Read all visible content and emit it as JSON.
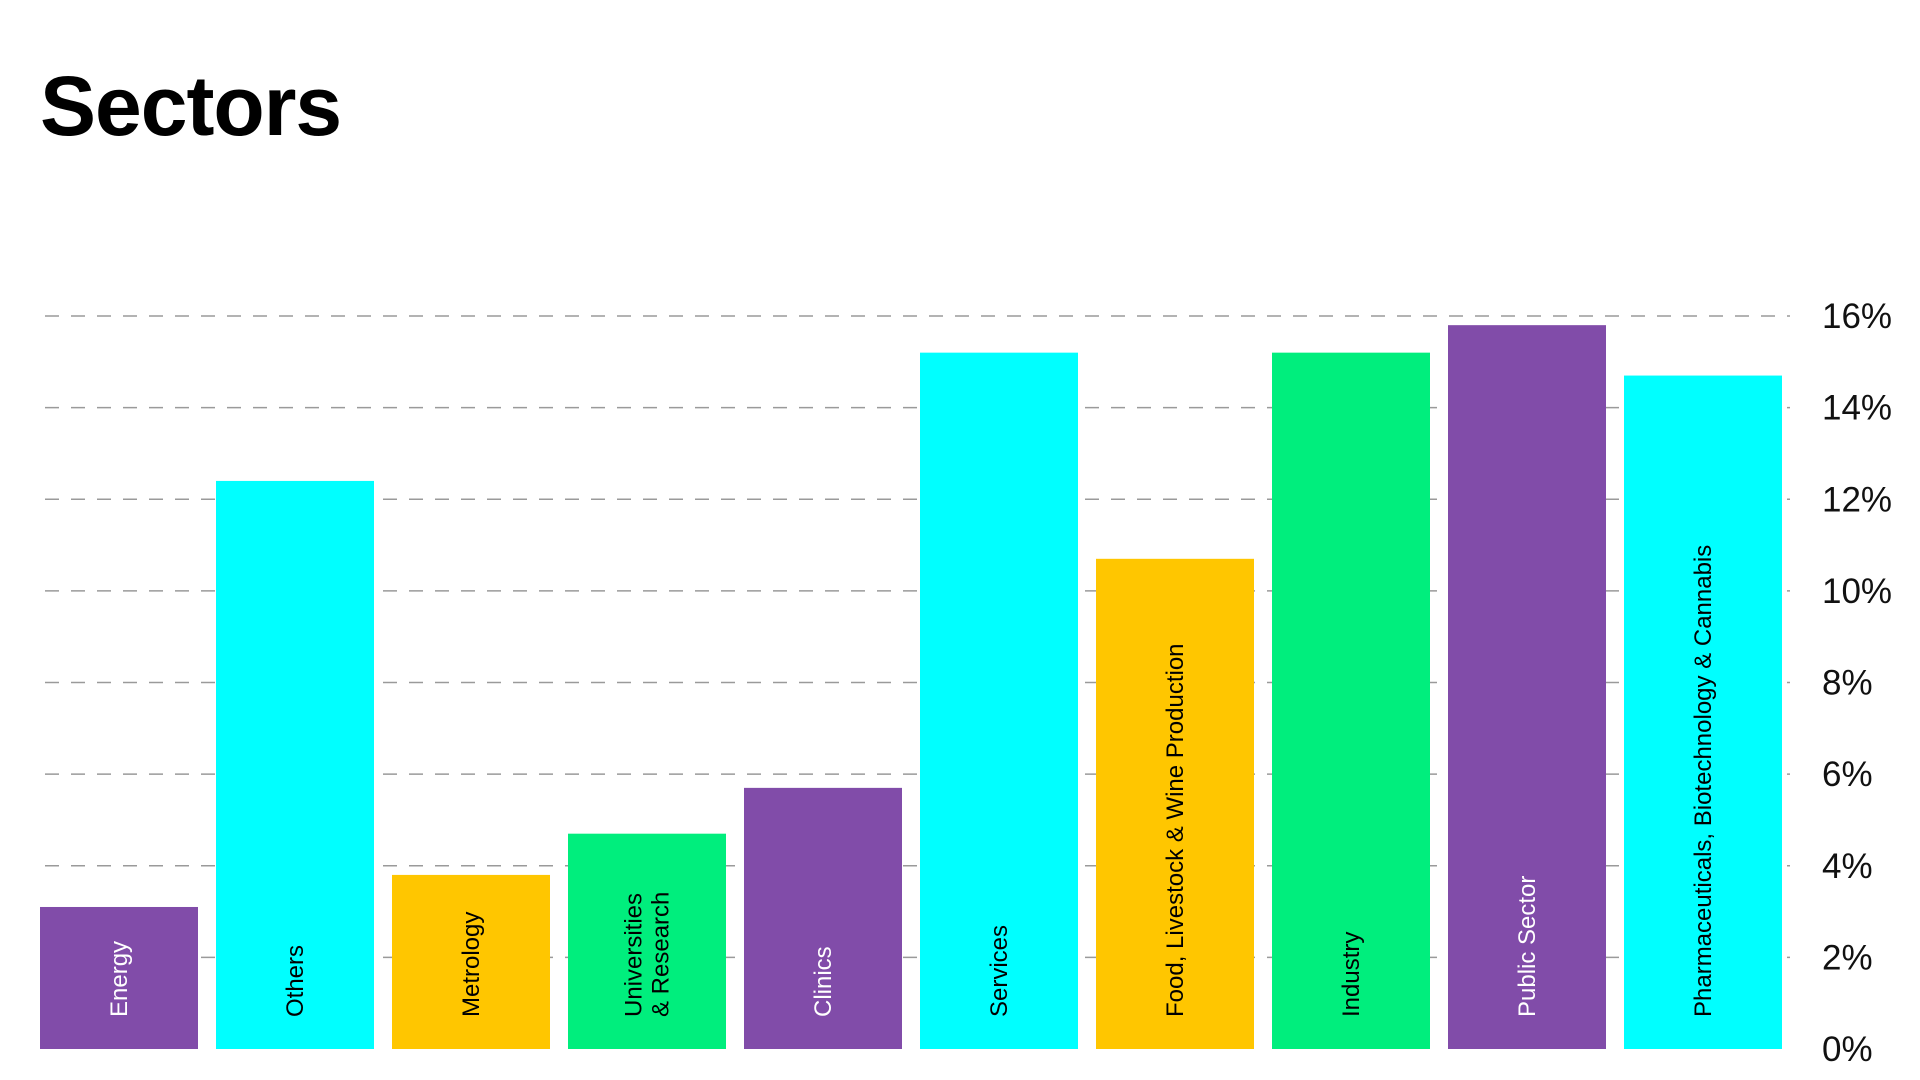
{
  "page": {
    "title": "Sectors"
  },
  "chart_data": {
    "type": "bar",
    "title": "Sectors",
    "xlabel": "",
    "ylabel": "",
    "y_axis_position": "right",
    "ylim": [
      0,
      16
    ],
    "yticks": [
      0,
      2,
      4,
      6,
      8,
      10,
      12,
      14,
      16
    ],
    "ytick_labels": [
      "0%",
      "2%",
      "4%",
      "6%",
      "8%",
      "10%",
      "12%",
      "14%",
      "16%"
    ],
    "grid": true,
    "grid_style": "dashed-horizontal",
    "label_orientation": "vertical-inside-bar",
    "categories": [
      "Energy",
      "Others",
      "Metrology",
      "Universities\n& Research",
      "Clinics",
      "Services",
      "Food, Livestock & Wine Production",
      "Industry",
      "Public Sector",
      "Pharmaceuticals, Biotechnology & Cannabis"
    ],
    "values": [
      3.1,
      12.4,
      3.8,
      4.7,
      5.7,
      15.2,
      10.7,
      15.2,
      15.8,
      14.7
    ],
    "colors": [
      "#814ca9",
      "#00ffff",
      "#ffc600",
      "#00ee7d",
      "#814ca9",
      "#00ffff",
      "#ffc600",
      "#00ee7d",
      "#814ca9",
      "#00ffff"
    ],
    "label_colors": [
      "#ffffff",
      "#000000",
      "#000000",
      "#000000",
      "#ffffff",
      "#000000",
      "#000000",
      "#000000",
      "#ffffff",
      "#000000"
    ]
  }
}
